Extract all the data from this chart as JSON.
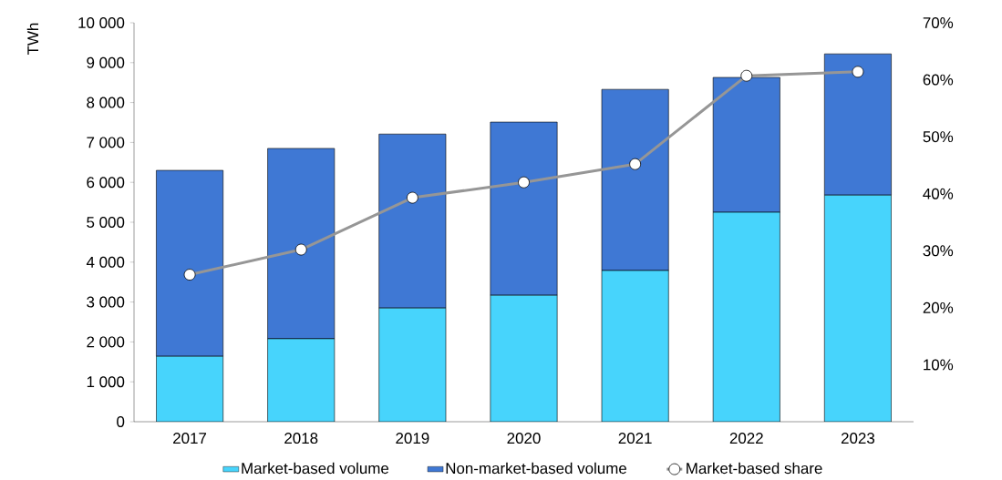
{
  "chart_data": {
    "type": "bar",
    "stacked": true,
    "ylabel": "TWh",
    "categories": [
      "2017",
      "2018",
      "2019",
      "2020",
      "2021",
      "2022",
      "2023"
    ],
    "series": [
      {
        "name": "Market-based volume",
        "color": "#47d4fc",
        "values": [
          1640,
          2080,
          2850,
          3170,
          3790,
          5250,
          5680
        ]
      },
      {
        "name": "Non-market-based volume",
        "color": "#3f78d4",
        "values": [
          4660,
          4770,
          4360,
          4340,
          4540,
          3380,
          3540
        ]
      },
      {
        "name": "Market-based share",
        "type": "line",
        "axis": "y2",
        "color": "#969696",
        "values": [
          25.8,
          30.2,
          39.3,
          42.0,
          45.2,
          60.7,
          61.4
        ]
      }
    ],
    "ylim": [
      0,
      10000
    ],
    "yticks": [
      0,
      {
        "value": 1000,
        "label": "1 000"
      },
      {
        "value": 2000,
        "label": "2 000"
      },
      {
        "value": 3000,
        "label": "3 000"
      },
      {
        "value": 4000,
        "label": "4 000"
      },
      {
        "value": 5000,
        "label": "5 000"
      },
      {
        "value": 6000,
        "label": "6 000"
      },
      {
        "value": 7000,
        "label": "7 000"
      },
      {
        "value": 8000,
        "label": "8 000"
      },
      {
        "value": 9000,
        "label": "9 000"
      },
      {
        "value": 10000,
        "label": "10 000"
      }
    ],
    "y2lim": [
      0,
      70
    ],
    "y2ticks": [
      {
        "value": 10,
        "label": "10%"
      },
      {
        "value": 20,
        "label": "20%"
      },
      {
        "value": 30,
        "label": "30%"
      },
      {
        "value": 40,
        "label": "40%"
      },
      {
        "value": 50,
        "label": "50%"
      },
      {
        "value": 60,
        "label": "60%"
      },
      {
        "value": 70,
        "label": "70%"
      }
    ],
    "legend": "bottom",
    "marker": "circle",
    "line_style": "solid",
    "grid": false
  }
}
